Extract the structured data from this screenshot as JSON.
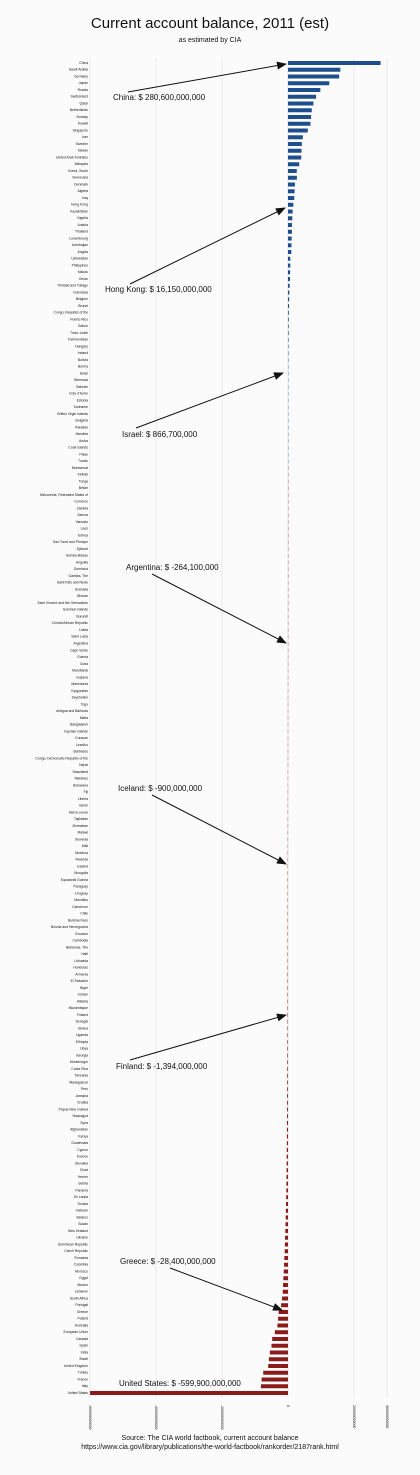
{
  "chart_data": {
    "type": "barh",
    "title": "Current account balance, 2011 (est)",
    "subtitle": "as estimated by CIA",
    "categories": [
      "China",
      "Saudi Arabia",
      "Germany",
      "Japan",
      "Russia",
      "Switzerland",
      "Qatar",
      "Netherlands",
      "Norway",
      "Kuwait",
      "Singapore",
      "Iran",
      "Sweden",
      "Taiwan",
      "United Arab Emirates",
      "Malaysia",
      "Korea, South",
      "Venezuela",
      "Denmark",
      "Algeria",
      "Iraq",
      "Hong Kong",
      "Kazakhstan",
      "Nigeria",
      "Austria",
      "Thailand",
      "Luxembourg",
      "Azerbaijan",
      "Angola",
      "Uzbekistan",
      "Philippines",
      "Macau",
      "Oman",
      "Trinidad and Tobago",
      "Indonesia",
      "Belgium",
      "Brunei",
      "Congo, Republic of the",
      "Puerto Rico",
      "Gabon",
      "Timor-Leste",
      "Turkmenistan",
      "Hungary",
      "Ireland",
      "Bolivia",
      "Burma",
      "Israel",
      "Bermuda",
      "Bahrain",
      "Cote d'Ivoire",
      "Estonia",
      "Suriname",
      "British Virgin Islands",
      "Bulgaria",
      "Pakistan",
      "Namibia",
      "Aruba",
      "Cook Islands",
      "Palau",
      "Tuvalu",
      "Montserrat",
      "Kiribati",
      "Tonga",
      "Belize",
      "Micronesia, Federated States of",
      "Comoros",
      "Zambia",
      "Samoa",
      "Vanuatu",
      "Laos",
      "Eritrea",
      "Sao Tome and Principe",
      "Djibouti",
      "Guinea-Bissau",
      "Anguilla",
      "Dominica",
      "Gambia, The",
      "Saint Kitts and Nevis",
      "Grenada",
      "Bhutan",
      "Saint Vincent and the Grenadines",
      "Solomon Islands",
      "Burundi",
      "Central African Republic",
      "Latvia",
      "Saint Lucia",
      "Argentina",
      "Cape Verde",
      "Guinea",
      "Cuba",
      "Mauritania",
      "Guyana",
      "Macedonia",
      "Kyrgyzstan",
      "Seychelles",
      "Togo",
      "Antigua and Barbuda",
      "Malta",
      "Bangladesh",
      "Cayman Islands",
      "Curacao",
      "Lesotho",
      "Barbados",
      "Congo, Democratic Republic of the",
      "Nepal",
      "Swaziland",
      "Maldives",
      "Botswana",
      "Fiji",
      "Liberia",
      "Benin",
      "Sierra Leone",
      "Tajikistan",
      "Zimbabwe",
      "Malawi",
      "Slovenia",
      "Mali",
      "Moldova",
      "Rwanda",
      "Iceland",
      "Mongolia",
      "Equatorial Guinea",
      "Paraguay",
      "Uruguay",
      "Mauritius",
      "Cameroon",
      "Chile",
      "Burkina Faso",
      "Bosnia and Herzegovina",
      "Ecuador",
      "Cambodia",
      "Bahamas, The",
      "Haiti",
      "Lithuania",
      "Honduras",
      "Armenia",
      "El Salvador",
      "Niger",
      "Jordan",
      "Albania",
      "Mozambique",
      "Finland",
      "Senegal",
      "Ghana",
      "Uganda",
      "Ethiopia",
      "Libya",
      "Georgia",
      "Montenegro",
      "Costa Rica",
      "Tanzania",
      "Madagascar",
      "Peru",
      "Jamaica",
      "Croatia",
      "Papua New Guinea",
      "Nicaragua",
      "Syria",
      "Afghanistan",
      "Kenya",
      "Guatemala",
      "Cyprus",
      "Kosovo",
      "Slovakia",
      "Chad",
      "Yemen",
      "Serbia",
      "Panama",
      "Sri Lanka",
      "Tunisia",
      "Vietnam",
      "Belarus",
      "Sudan",
      "New Zealand",
      "Ukraine",
      "Dominican Republic",
      "Czech Republic",
      "Romania",
      "Colombia",
      "Morocco",
      "Egypt",
      "Mexico",
      "Lebanon",
      "South Africa",
      "Portugal",
      "Greece",
      "Poland",
      "Australia",
      "European Union",
      "Canada",
      "Spain",
      "India",
      "Brazil",
      "United Kingdom",
      "Turkey",
      "France",
      "Italy",
      "United States"
    ],
    "values": [
      280600000000,
      158500000000,
      155000000000,
      125000000000,
      98000000000,
      85000000000,
      77000000000,
      72000000000,
      70000000000,
      68000000000,
      60000000000,
      45000000000,
      42000000000,
      41000000000,
      40000000000,
      34000000000,
      26500000000,
      27000000000,
      21000000000,
      20000000000,
      19000000000,
      16150000000,
      14000000000,
      13000000000,
      12000000000,
      11900000000,
      11000000000,
      10500000000,
      10000000000,
      7000000000,
      7000000000,
      6500000000,
      6000000000,
      5000000000,
      4000000000,
      3500000000,
      3000000000,
      2500000000,
      2200000000,
      2000000000,
      1900000000,
      1600000000,
      1500000000,
      1400000000,
      1200000000,
      1000000000,
      866700000,
      800000000,
      770000000,
      600000000,
      300000000,
      200000000,
      200000000,
      180000000,
      150000000,
      100000000,
      60000000,
      30000000,
      15000000,
      5000000,
      -3000000,
      -10000000,
      -20000000,
      -30000000,
      -35000000,
      -40000000,
      -50000000,
      -55000000,
      -60000000,
      -70000000,
      -80000000,
      -85000000,
      -90000000,
      -95000000,
      -100000000,
      -110000000,
      -120000000,
      -130000000,
      -140000000,
      -150000000,
      -180000000,
      -200000000,
      -210000000,
      -220000000,
      -230000000,
      -240000000,
      -264100000,
      -270000000,
      -280000000,
      -300000000,
      -310000000,
      -330000000,
      -350000000,
      -370000000,
      -380000000,
      -400000000,
      -410000000,
      -420000000,
      -430000000,
      -450000000,
      -460000000,
      -480000000,
      -500000000,
      -510000000,
      -520000000,
      -540000000,
      -560000000,
      -580000000,
      -600000000,
      -620000000,
      -640000000,
      -660000000,
      -680000000,
      -700000000,
      -720000000,
      -740000000,
      -760000000,
      -800000000,
      -850000000,
      -900000000,
      -950000000,
      -970000000,
      -990000000,
      -1000000000,
      -1020000000,
      -1050000000,
      -1070000000,
      -1090000000,
      -1100000000,
      -1120000000,
      -1150000000,
      -1170000000,
      -1200000000,
      -1220000000,
      -1250000000,
      -1270000000,
      -1300000000,
      -1320000000,
      -1340000000,
      -1360000000,
      -1380000000,
      -1394000000,
      -1450000000,
      -1500000000,
      -1600000000,
      -1700000000,
      -1800000000,
      -1900000000,
      -2000000000,
      -2100000000,
      -2200000000,
      -2300000000,
      -2400000000,
      -2500000000,
      -2600000000,
      -2700000000,
      -2800000000,
      -3000000000,
      -3200000000,
      -3400000000,
      -3600000000,
      -3800000000,
      -4000000000,
      -4200000000,
      -4400000000,
      -4600000000,
      -4800000000,
      -5000000000,
      -5500000000,
      -6000000000,
      -6500000000,
      -7000000000,
      -7500000000,
      -8000000000,
      -9000000000,
      -9500000000,
      -10000000000,
      -11000000000,
      -12000000000,
      -13000000000,
      -14000000000,
      -15000000000,
      -16000000000,
      -18000000000,
      -21000000000,
      -28400000000,
      -30000000000,
      -32000000000,
      -40000000000,
      -48000000000,
      -50000000000,
      -55000000000,
      -58000000000,
      -60000000000,
      -75000000000,
      -80000000000,
      -82000000000,
      -599900000000
    ],
    "positive_color": "#1f4e8c",
    "negative_color": "#8b1a1a",
    "xlim": [
      -600000000000,
      300000000000
    ],
    "xticks": [
      -600000000000,
      -400000000000,
      -200000000000,
      0,
      200000000000,
      300000000000
    ],
    "grid": true,
    "annotations": [
      {
        "text": "China: $ 280,600,000,000"
      },
      {
        "text": "Hong Kong: $ 16,150,000,000"
      },
      {
        "text": "Israel: $ 866,700,000"
      },
      {
        "text": "Argentina: $ -264,100,000"
      },
      {
        "text": "Iceland: $ -900,000,000"
      },
      {
        "text": "Finland: $ -1,394,000,000"
      },
      {
        "text": "Greece: $ -28,400,000,000"
      },
      {
        "text": "United States: $ -599,900,000,000"
      }
    ],
    "source": [
      "Source:  The CIA world factbook, current account balance",
      "https://www.cia.gov/library/publications/the-world-factbook/rankorder/2187rank.html"
    ]
  }
}
